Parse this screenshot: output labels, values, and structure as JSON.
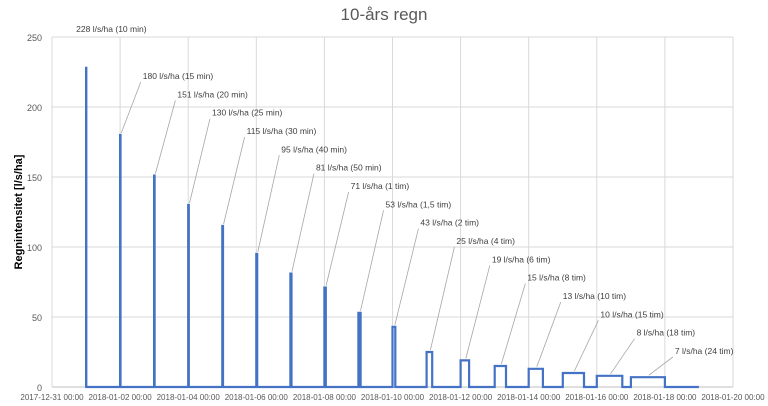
{
  "chart_data": {
    "type": "line",
    "title": "10-års regn",
    "xlabel": "",
    "ylabel": "Regnintensitet [l/s/ha]",
    "ylim": [
      0,
      250
    ],
    "yticks": [
      0,
      50,
      100,
      150,
      200,
      250
    ],
    "xlim": [
      "2017-12-31 00:00",
      "2018-01-20 00:00"
    ],
    "xticks": [
      "2017-12-31 00:00",
      "2018-01-02 00:00",
      "2018-01-04 00:00",
      "2018-01-06 00:00",
      "2018-01-08 00:00",
      "2018-01-10 00:00",
      "2018-01-12 00:00",
      "2018-01-14 00:00",
      "2018-01-16 00:00",
      "2018-01-18 00:00",
      "2018-01-20 00:00"
    ],
    "grid": true,
    "line_color": "#4472c4",
    "grid_color": "#d9d9d9",
    "events": [
      {
        "start": "2018-01-01 00:00",
        "duration_min": 10,
        "value": 228,
        "label": "228 l/s/ha (10 min)"
      },
      {
        "start": "2018-01-02 00:00",
        "duration_min": 15,
        "value": 180,
        "label": "180 l/s/ha (15 min)"
      },
      {
        "start": "2018-01-03 00:00",
        "duration_min": 20,
        "value": 151,
        "label": "151 l/s/ha  (20 min)"
      },
      {
        "start": "2018-01-04 00:00",
        "duration_min": 25,
        "value": 130,
        "label": "130 l/s/ha (25 min)"
      },
      {
        "start": "2018-01-05 00:00",
        "duration_min": 30,
        "value": 115,
        "label": "115 l/s/ha (30 min)"
      },
      {
        "start": "2018-01-06 00:00",
        "duration_min": 40,
        "value": 95,
        "label": "95 l/s/ha (40 min)"
      },
      {
        "start": "2018-01-07 00:00",
        "duration_min": 50,
        "value": 81,
        "label": "81 l/s/ha (50 min)"
      },
      {
        "start": "2018-01-08 00:00",
        "duration_min": 60,
        "value": 71,
        "label": "71 l/s/ha (1 tim)"
      },
      {
        "start": "2018-01-09 00:00",
        "duration_min": 90,
        "value": 53,
        "label": "53 l/s/ha (1,5 tim)"
      },
      {
        "start": "2018-01-10 00:00",
        "duration_min": 120,
        "value": 43,
        "label": "43 l/s/ha (2 tim)"
      },
      {
        "start": "2018-01-11 00:00",
        "duration_min": 240,
        "value": 25,
        "label": "25 l/s/ha (4 tim)"
      },
      {
        "start": "2018-01-12 00:00",
        "duration_min": 360,
        "value": 19,
        "label": "19 l/s/ha (6 tim)"
      },
      {
        "start": "2018-01-13 00:00",
        "duration_min": 480,
        "value": 15,
        "label": "15 l/s/ha (8 tim)"
      },
      {
        "start": "2018-01-14 00:00",
        "duration_min": 600,
        "value": 13,
        "label": "13 l/s/ha (10 tim)"
      },
      {
        "start": "2018-01-15 00:00",
        "duration_min": 900,
        "value": 10,
        "label": "10 l/s/ha (15 tim)"
      },
      {
        "start": "2018-01-16 00:00",
        "duration_min": 1080,
        "value": 8,
        "label": "8 l/s/ha (18 tim)"
      },
      {
        "start": "2018-01-17 00:00",
        "duration_min": 1440,
        "value": 7,
        "label": "7 l/s/ha (24 tim)"
      }
    ],
    "series_end": "2018-01-19 00:00"
  }
}
